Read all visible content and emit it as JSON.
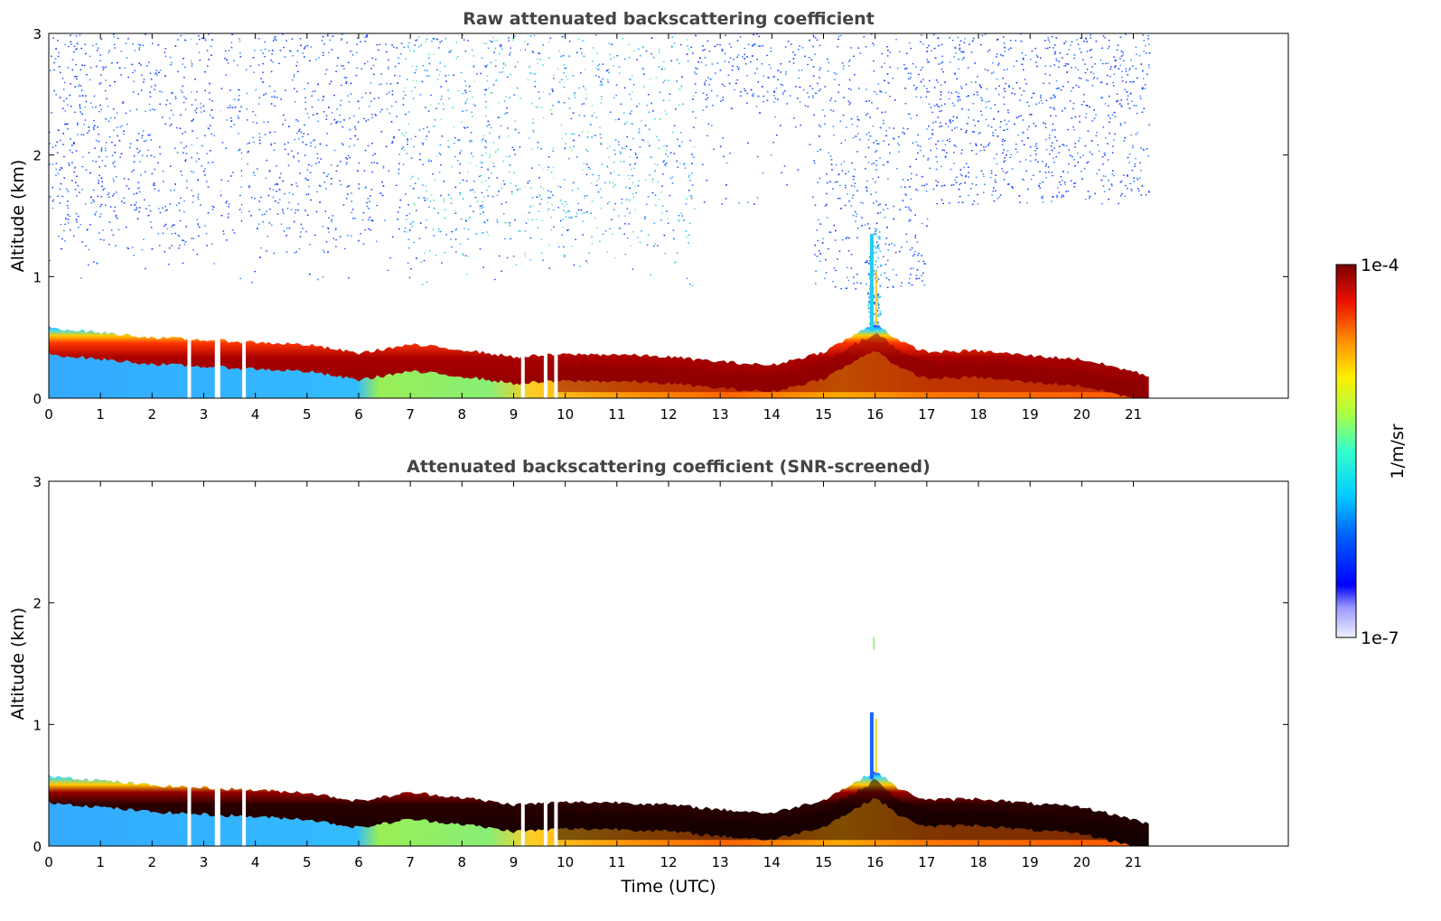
{
  "chart_data": {
    "type": "heatmap",
    "panels": [
      {
        "title": "Raw attenuated backscattering coefficient",
        "ylabel": "Altitude (km)",
        "xlabel": "",
        "xlim": [
          0,
          24
        ],
        "ylim": [
          0,
          3
        ],
        "xticks": [
          "0",
          "1",
          "2",
          "3",
          "4",
          "5",
          "6",
          "7",
          "8",
          "9",
          "10",
          "11",
          "12",
          "13",
          "14",
          "15",
          "16",
          "17",
          "18",
          "19",
          "20",
          "21"
        ],
        "yticks": [
          "0",
          "1",
          "2",
          "3"
        ],
        "data_end_hour": 21.3,
        "missing_data_hours": [
          2.72,
          3.25,
          3.78,
          9.18,
          9.62,
          9.82
        ],
        "layer_top_km": [
          [
            0,
            0.58
          ],
          [
            1,
            0.54
          ],
          [
            2,
            0.5
          ],
          [
            3,
            0.48
          ],
          [
            4,
            0.46
          ],
          [
            5,
            0.44
          ],
          [
            6,
            0.37
          ],
          [
            7,
            0.44
          ],
          [
            8,
            0.4
          ],
          [
            9,
            0.34
          ],
          [
            10,
            0.36
          ],
          [
            11,
            0.36
          ],
          [
            12,
            0.34
          ],
          [
            13,
            0.3
          ],
          [
            14,
            0.27
          ],
          [
            15,
            0.38
          ],
          [
            15.6,
            0.52
          ],
          [
            16,
            0.62
          ],
          [
            16.5,
            0.46
          ],
          [
            17,
            0.38
          ],
          [
            18,
            0.39
          ],
          [
            19,
            0.35
          ],
          [
            20,
            0.32
          ],
          [
            21,
            0.22
          ],
          [
            21.3,
            0.18
          ]
        ],
        "noisy_background": true
      },
      {
        "title": "Attenuated backscattering coefficient (SNR-screened)",
        "ylabel": "Altitude (km)",
        "xlabel": "Time (UTC)",
        "xlim": [
          0,
          24
        ],
        "ylim": [
          0,
          3
        ],
        "xticks": [
          "0",
          "1",
          "2",
          "3",
          "4",
          "5",
          "6",
          "7",
          "8",
          "9",
          "10",
          "11",
          "12",
          "13",
          "14",
          "15",
          "16",
          "17",
          "18",
          "19",
          "20",
          "21"
        ],
        "yticks": [
          "0",
          "1",
          "2",
          "3"
        ],
        "data_end_hour": 21.3,
        "missing_data_hours": [
          2.72,
          3.25,
          3.78,
          9.18,
          9.62,
          9.82
        ],
        "layer_top_km": [
          [
            0,
            0.58
          ],
          [
            1,
            0.54
          ],
          [
            2,
            0.5
          ],
          [
            3,
            0.48
          ],
          [
            4,
            0.46
          ],
          [
            5,
            0.44
          ],
          [
            6,
            0.37
          ],
          [
            7,
            0.44
          ],
          [
            8,
            0.4
          ],
          [
            9,
            0.34
          ],
          [
            10,
            0.36
          ],
          [
            11,
            0.36
          ],
          [
            12,
            0.34
          ],
          [
            13,
            0.3
          ],
          [
            14,
            0.27
          ],
          [
            15,
            0.38
          ],
          [
            15.6,
            0.52
          ],
          [
            16,
            0.62
          ],
          [
            16.5,
            0.46
          ],
          [
            17,
            0.38
          ],
          [
            18,
            0.39
          ],
          [
            19,
            0.35
          ],
          [
            20,
            0.32
          ],
          [
            21,
            0.22
          ],
          [
            21.3,
            0.18
          ]
        ],
        "noisy_background": false
      }
    ],
    "colorbar": {
      "label": "1/m/sr",
      "max_label": "1e-4",
      "min_label": "1e-7",
      "scale": "log",
      "colormap": "jet"
    }
  }
}
